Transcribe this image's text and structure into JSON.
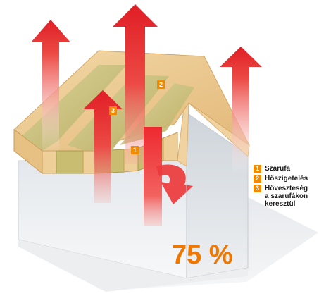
{
  "legend": {
    "items": [
      {
        "number": "1",
        "label": "Szarufa"
      },
      {
        "number": "2",
        "label": "Hőszigetelés"
      },
      {
        "number": "3",
        "label": "Hőveszteség\na szarufákon\nkeresztül"
      }
    ]
  },
  "markers": {
    "rafter": "1",
    "insulation": "2",
    "heat_loss": "3"
  },
  "heat_loss_value": "75 %",
  "colors": {
    "badge": "#f08a00",
    "percent_text": "#f07800",
    "arrow_red": "#e8202a",
    "wood": "#e9c58a",
    "insulation": "#c9c07a",
    "wall": "#d8dde3"
  },
  "icons": {
    "heat_arrow": "arrow-up-icon",
    "curved_arrow": "curved-arrow-icon"
  }
}
